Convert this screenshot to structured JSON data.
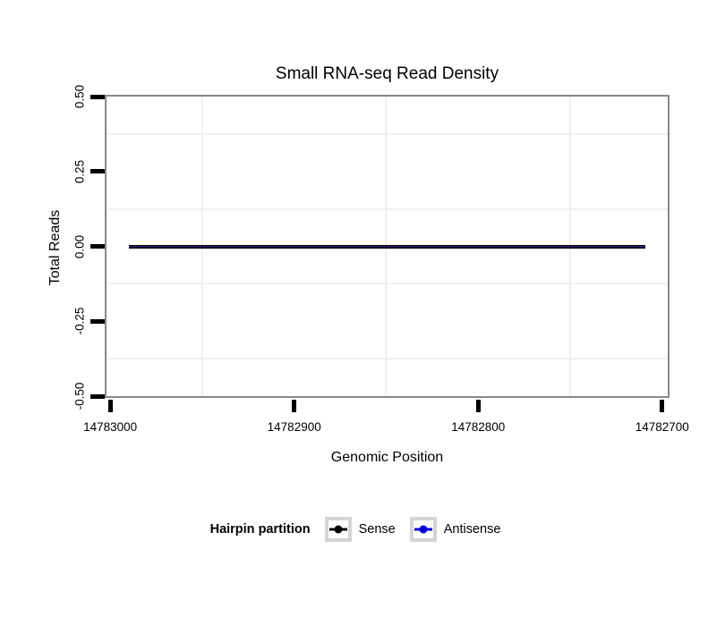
{
  "figure": {
    "background": "#ffffff"
  },
  "chart_data": {
    "type": "line",
    "title": "Small RNA-seq Read Density",
    "xlabel": "Genomic Position",
    "ylabel": "Total Reads",
    "x_axis_reversed": true,
    "xlim": [
      14783003,
      14782696
    ],
    "x_ticks": [
      14783000,
      14782900,
      14782800,
      14782700
    ],
    "x_tick_labels": [
      "14783000",
      "14782900",
      "14782800",
      "14782700"
    ],
    "ylim": [
      0.5,
      -0.5
    ],
    "y_ticks": [
      0.5,
      0.25,
      0.0,
      -0.25,
      -0.5
    ],
    "y_tick_labels": [
      "0.50",
      "0.25",
      "0.00",
      "-0.25",
      "-0.50"
    ],
    "grid": {
      "minor_only": true,
      "minor_color": "#f0f0f0"
    },
    "panel_border_color": "#898989",
    "series": [
      {
        "name": "Sense",
        "color": "#000000",
        "x": [
          14782990,
          14782709
        ],
        "y": [
          0,
          0
        ]
      },
      {
        "name": "Antisense",
        "color": "#2b2b9e",
        "x": [
          14782990,
          14782709
        ],
        "y": [
          0,
          0
        ]
      }
    ],
    "legend": {
      "title": "Hairpin partition",
      "position": "bottom",
      "entries": [
        {
          "label": "Sense",
          "color": "#000000"
        },
        {
          "label": "Antisense",
          "color": "#0000dd"
        }
      ]
    }
  }
}
